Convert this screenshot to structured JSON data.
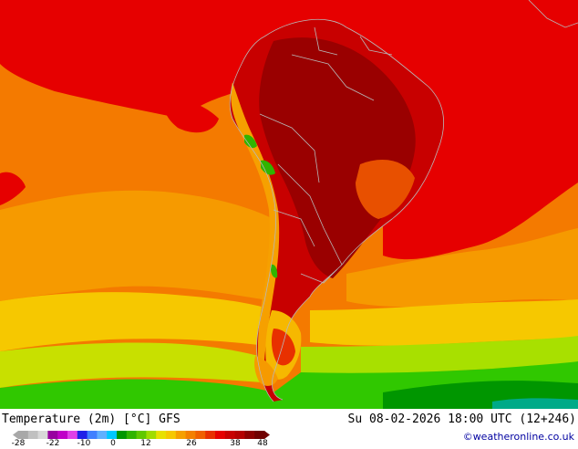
{
  "map": {
    "region": "South America",
    "colors": {
      "ocean_warm": "#f47a00",
      "ocean_orange": "#f69a00",
      "subtropical_red": "#e60000",
      "land_hot": "#b40000",
      "land_very_hot": "#8c0000",
      "patagonia": "#f6b800",
      "yellow_band": "#e8e000",
      "lime_band": "#a8e000",
      "green_band": "#30c800",
      "dark_green": "#009600",
      "teal_antarctic": "#00aa88",
      "borders": "#b8b8b8"
    }
  },
  "footer": {
    "title": "Temperature (2m) [°C] GFS",
    "timestamp": "Su 08-02-2026 18:00 UTC (12+246)",
    "credit": "©weatheronline.co.uk"
  },
  "legend": {
    "ticks": [
      "-28",
      "-22",
      "-10",
      "0",
      "12",
      "26",
      "38",
      "48"
    ],
    "colors": [
      "#a8a8a8",
      "#c0c0c0",
      "#d8d8d8",
      "#9800a0",
      "#c000c8",
      "#e040e8",
      "#2020e8",
      "#4080ff",
      "#60b0ff",
      "#00c8ff",
      "#009600",
      "#30b400",
      "#60c800",
      "#a0dc00",
      "#e8e000",
      "#f6c800",
      "#f6a000",
      "#f48000",
      "#f06000",
      "#e83000",
      "#e60000",
      "#c80000",
      "#b40000",
      "#8c0000",
      "#700000"
    ]
  }
}
